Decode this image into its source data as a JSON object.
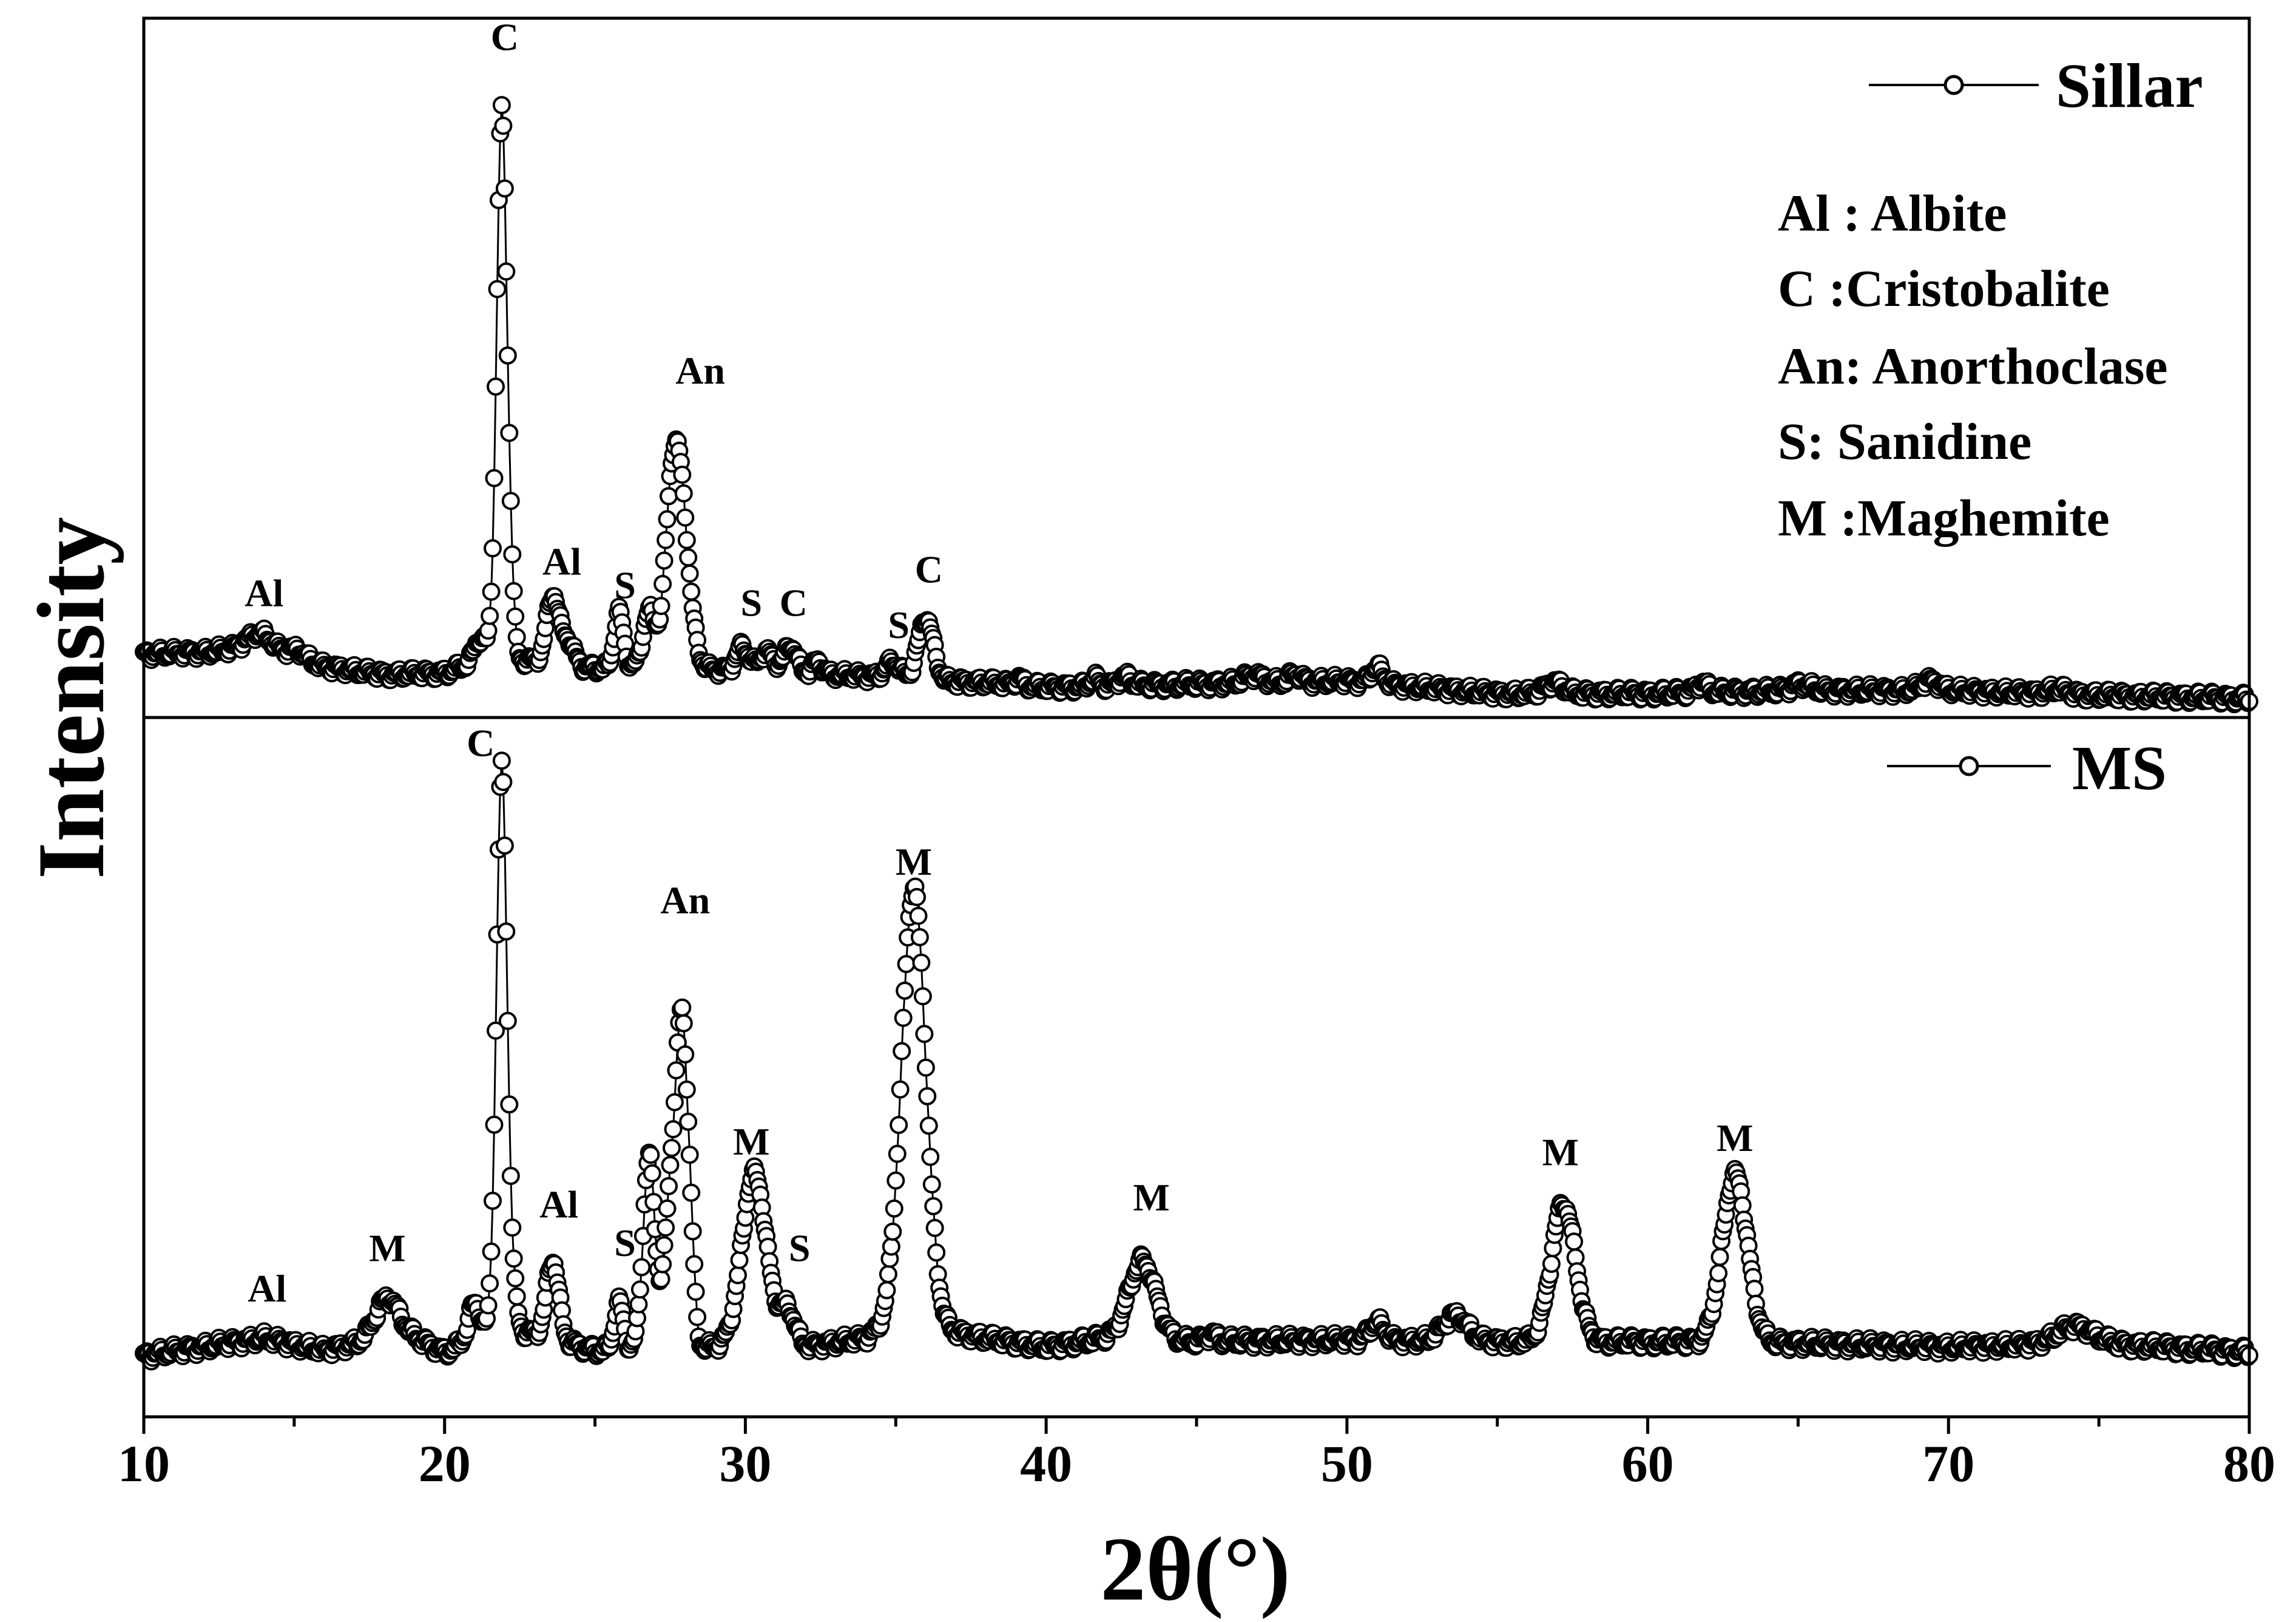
{
  "chart_data": {
    "type": "line",
    "xlabel": "2θ(°)",
    "ylabel": "Intensity",
    "xlim": [
      10,
      80
    ],
    "xticks": [
      "10",
      "20",
      "30",
      "40",
      "50",
      "60",
      "70",
      "80"
    ],
    "marker": "open-circle",
    "phase_key": [
      "Al : Albite",
      "C :Cristobalite",
      "An: Anorthoclase",
      "S: Sanidine",
      "M :Maghemite"
    ],
    "panels": [
      {
        "name": "Sillar",
        "legend": "Sillar",
        "ylim": [
          -2,
          42
        ],
        "baseline": [
          [
            10,
            2.0
          ],
          [
            12,
            2.1
          ],
          [
            14,
            2.5
          ],
          [
            16,
            1.2
          ],
          [
            18,
            0.7
          ],
          [
            20,
            0.8
          ],
          [
            21,
            1.5
          ],
          [
            23,
            1.6
          ],
          [
            25,
            1.1
          ],
          [
            28,
            1.2
          ],
          [
            29,
            1.0
          ],
          [
            32,
            0.8
          ],
          [
            34,
            0.6
          ],
          [
            36,
            0.3
          ],
          [
            38,
            0.2
          ],
          [
            40,
            -0.1
          ],
          [
            45,
            0.1
          ],
          [
            50,
            0.3
          ],
          [
            55,
            -0.5
          ],
          [
            60,
            -0.5
          ],
          [
            65,
            -0.3
          ],
          [
            70,
            -0.3
          ],
          [
            75,
            -0.6
          ],
          [
            80,
            -0.8
          ]
        ],
        "peaks": [
          {
            "x": 13.8,
            "height": 0.8,
            "width": 0.4
          },
          {
            "x": 15.1,
            "height": 0.5,
            "width": 0.25
          },
          {
            "x": 21.2,
            "height": 1.5,
            "width": 0.2
          },
          {
            "x": 21.9,
            "height": 34.5,
            "width": 0.17
          },
          {
            "x": 22.2,
            "height": 3.0,
            "width": 0.12
          },
          {
            "x": 23.6,
            "height": 4.3,
            "width": 0.2
          },
          {
            "x": 24.1,
            "height": 1.5,
            "width": 0.2
          },
          {
            "x": 25.8,
            "height": 3.5,
            "width": 0.15
          },
          {
            "x": 26.8,
            "height": 3.5,
            "width": 0.2
          },
          {
            "x": 27.5,
            "height": 5.0,
            "width": 0.22
          },
          {
            "x": 27.8,
            "height": 11.5,
            "width": 0.3
          },
          {
            "x": 29.9,
            "height": 1.5,
            "width": 0.2
          },
          {
            "x": 30.7,
            "height": 1.2,
            "width": 0.25
          },
          {
            "x": 31.5,
            "height": 1.7,
            "width": 0.2
          },
          {
            "x": 32.4,
            "height": 0.8,
            "width": 0.15
          },
          {
            "x": 34.9,
            "height": 1.0,
            "width": 0.25
          },
          {
            "x": 36.0,
            "height": 4.0,
            "width": 0.25
          },
          {
            "x": 39.1,
            "height": 0.4,
            "width": 0.15
          },
          {
            "x": 41.6,
            "height": 0.5,
            "width": 0.15
          },
          {
            "x": 42.6,
            "height": 0.6,
            "width": 0.2
          },
          {
            "x": 46.9,
            "height": 0.5,
            "width": 0.3
          },
          {
            "x": 48.3,
            "height": 0.5,
            "width": 0.2
          },
          {
            "x": 51.0,
            "height": 1.0,
            "width": 0.2
          },
          {
            "x": 56.9,
            "height": 0.7,
            "width": 0.3
          },
          {
            "x": 61.8,
            "height": 0.6,
            "width": 0.2
          },
          {
            "x": 65.1,
            "height": 0.4,
            "width": 0.3
          },
          {
            "x": 69.4,
            "height": 0.6,
            "width": 0.3
          },
          {
            "x": 73.6,
            "height": 0.3,
            "width": 0.3
          }
        ],
        "labels": [
          {
            "text": "Al",
            "x": 14.0,
            "y": 5.0
          },
          {
            "text": "C",
            "x": 22.0,
            "y": 40.0
          },
          {
            "text": "Al",
            "x": 23.9,
            "y": 7.0
          },
          {
            "text": "S",
            "x": 26.0,
            "y": 5.5
          },
          {
            "text": "An",
            "x": 28.5,
            "y": 19.0
          },
          {
            "text": "S",
            "x": 30.2,
            "y": 4.4
          },
          {
            "text": "C",
            "x": 31.6,
            "y": 4.4
          },
          {
            "text": "S",
            "x": 35.1,
            "y": 3.0
          },
          {
            "text": "C",
            "x": 36.1,
            "y": 6.5
          }
        ]
      },
      {
        "name": "MS",
        "legend": "MS",
        "ylim": [
          -3,
          37
        ],
        "baseline": [
          [
            10,
            0.5
          ],
          [
            12,
            1.0
          ],
          [
            14,
            1.5
          ],
          [
            16,
            0.8
          ],
          [
            18,
            1.5
          ],
          [
            19,
            1.5
          ],
          [
            20,
            0.7
          ],
          [
            21,
            1.5
          ],
          [
            23,
            1.8
          ],
          [
            25,
            0.8
          ],
          [
            29,
            1.0
          ],
          [
            30,
            1.5
          ],
          [
            32,
            1.0
          ],
          [
            34,
            1.5
          ],
          [
            35,
            2.5
          ],
          [
            38,
            1.5
          ],
          [
            40,
            1.0
          ],
          [
            42,
            1.5
          ],
          [
            45,
            1.3
          ],
          [
            50,
            1.4
          ],
          [
            55,
            1.3
          ],
          [
            60,
            1.3
          ],
          [
            65,
            1.2
          ],
          [
            70,
            1.0
          ],
          [
            75,
            1.2
          ],
          [
            80,
            0.7
          ]
        ],
        "peaks": [
          {
            "x": 18.1,
            "height": 2.3,
            "width": 0.4
          },
          {
            "x": 21.0,
            "height": 2.0,
            "width": 0.2
          },
          {
            "x": 21.9,
            "height": 32.5,
            "width": 0.18
          },
          {
            "x": 22.3,
            "height": 1.5,
            "width": 0.15
          },
          {
            "x": 23.6,
            "height": 4.5,
            "width": 0.2
          },
          {
            "x": 25.8,
            "height": 2.7,
            "width": 0.15
          },
          {
            "x": 26.8,
            "height": 11.0,
            "width": 0.2
          },
          {
            "x": 27.5,
            "height": 8.0,
            "width": 0.2
          },
          {
            "x": 27.9,
            "height": 18.0,
            "width": 0.2
          },
          {
            "x": 28.2,
            "height": 3.0,
            "width": 0.12
          },
          {
            "x": 30.3,
            "height": 9.5,
            "width": 0.4
          },
          {
            "x": 31.4,
            "height": 2.0,
            "width": 0.25
          },
          {
            "x": 35.6,
            "height": 25.0,
            "width": 0.4
          },
          {
            "x": 43.2,
            "height": 4.5,
            "width": 0.45
          },
          {
            "x": 45.5,
            "height": 0.4,
            "width": 0.2
          },
          {
            "x": 51.0,
            "height": 1.0,
            "width": 0.25
          },
          {
            "x": 53.6,
            "height": 1.5,
            "width": 0.4
          },
          {
            "x": 57.2,
            "height": 7.9,
            "width": 0.4
          },
          {
            "x": 62.9,
            "height": 9.6,
            "width": 0.42
          },
          {
            "x": 74.2,
            "height": 1.0,
            "width": 0.6
          }
        ],
        "labels": [
          {
            "text": "Al",
            "x": 14.1,
            "y": 3.6
          },
          {
            "text": "M",
            "x": 18.1,
            "y": 5.9
          },
          {
            "text": "C",
            "x": 21.2,
            "y": 34.8
          },
          {
            "text": "Al",
            "x": 23.8,
            "y": 8.4
          },
          {
            "text": "S",
            "x": 26.0,
            "y": 6.2
          },
          {
            "text": "An",
            "x": 28.0,
            "y": 25.8
          },
          {
            "text": "M",
            "x": 30.2,
            "y": 12.0
          },
          {
            "text": "S",
            "x": 31.8,
            "y": 5.9
          },
          {
            "text": "M",
            "x": 35.6,
            "y": 28.0
          },
          {
            "text": "M",
            "x": 43.5,
            "y": 8.8
          },
          {
            "text": "M",
            "x": 57.1,
            "y": 11.4
          },
          {
            "text": "M",
            "x": 62.9,
            "y": 12.2
          }
        ]
      }
    ]
  }
}
